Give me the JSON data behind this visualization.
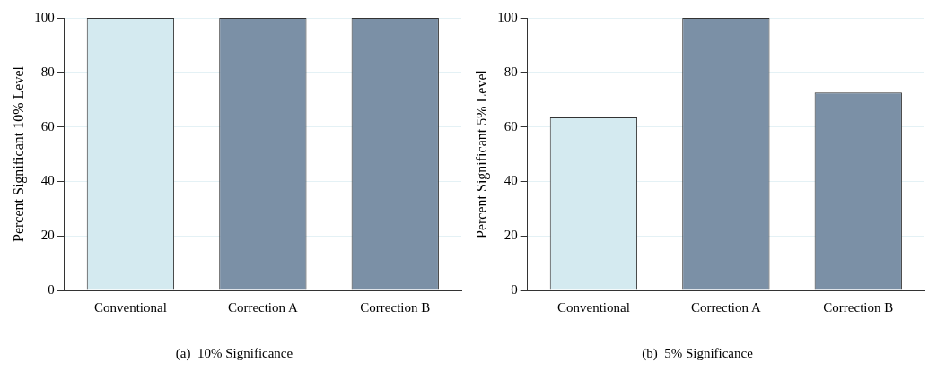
{
  "chart_data": [
    {
      "type": "bar",
      "title": "(a)  10% Significance",
      "ylabel": "Percent Significant 10% Level",
      "categories": [
        "Conventional",
        "Correction A",
        "Correction B"
      ],
      "values": [
        100,
        100,
        100
      ],
      "colors": [
        "#d4eaf0",
        "#7b90a6",
        "#7b90a6"
      ],
      "ylim": [
        0,
        100
      ],
      "yticks": [
        0,
        20,
        40,
        60,
        80,
        100
      ],
      "grid": "y"
    },
    {
      "type": "bar",
      "title": "(b)  5% Significance",
      "ylabel": "Percent Significant 5% Level",
      "categories": [
        "Conventional",
        "Correction A",
        "Correction B"
      ],
      "values": [
        63.5,
        100,
        72.6
      ],
      "colors": [
        "#d4eaf0",
        "#7b90a6",
        "#7b90a6"
      ],
      "ylim": [
        0,
        100
      ],
      "yticks": [
        0,
        20,
        40,
        60,
        80,
        100
      ],
      "grid": "y"
    }
  ]
}
